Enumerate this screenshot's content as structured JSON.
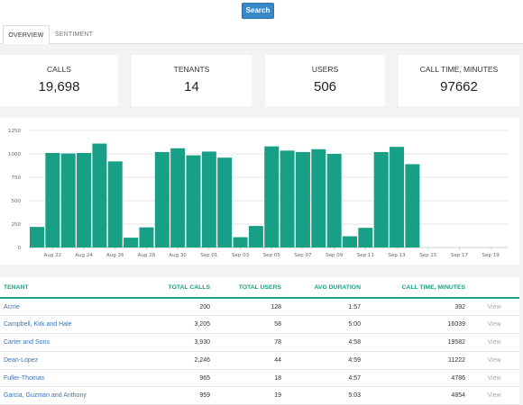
{
  "search_label": "Search",
  "tabs": [
    {
      "label": "OVERVIEW",
      "active": true
    },
    {
      "label": "SENTIMENT",
      "active": false
    }
  ],
  "stats": [
    {
      "label": "CALLS",
      "value": "19,698"
    },
    {
      "label": "TENANTS",
      "value": "14"
    },
    {
      "label": "USERS",
      "value": "506"
    },
    {
      "label": "CALL TIME, MINUTES",
      "value": "97662"
    }
  ],
  "chart_data": {
    "type": "bar",
    "color": "#17a085",
    "ylim": [
      0,
      1250
    ],
    "yticks": [
      0,
      250,
      500,
      750,
      1000,
      1250
    ],
    "grid": true,
    "x": [
      "Aug 21",
      "Aug 22",
      "Aug 23",
      "Aug 24",
      "Aug 25",
      "Aug 26",
      "Aug 27",
      "Aug 28",
      "Aug 29",
      "Aug 30",
      "Aug 31",
      "Sep 01",
      "Sep 02",
      "Sep 03",
      "Sep 04",
      "Sep 05",
      "Sep 06",
      "Sep 07",
      "Sep 08",
      "Sep 09",
      "Sep 10",
      "Sep 11",
      "Sep 12",
      "Sep 13",
      "Sep 14"
    ],
    "values": [
      220,
      1010,
      1005,
      1010,
      1110,
      920,
      105,
      215,
      1020,
      1060,
      985,
      1025,
      960,
      110,
      230,
      1080,
      1035,
      1020,
      1050,
      1000,
      120,
      210,
      1020,
      1075,
      890
    ],
    "xtick_labels": [
      "Aug 22",
      "Aug 24",
      "Aug 26",
      "Aug 28",
      "Aug 30",
      "Sep 01",
      "Sep 03",
      "Sep 05",
      "Sep 07",
      "Sep 09",
      "Sep 11",
      "Sep 13",
      "Sep 15",
      "Sep 17",
      "Sep 19"
    ]
  },
  "table": {
    "headers": [
      "TENANT",
      "TOTAL CALLS",
      "TOTAL USERS",
      "AVG DURATION",
      "CALL TIME, MINUTES",
      ""
    ],
    "rows": [
      {
        "tenant": "Acme",
        "calls": "200",
        "users": "128",
        "avg": "1:57",
        "minutes": "392",
        "action": "View"
      },
      {
        "tenant": "Campbell, Kirk and Hale",
        "calls": "3,205",
        "users": "58",
        "avg": "5:00",
        "minutes": "16039",
        "action": "View"
      },
      {
        "tenant": "Carter and Sons",
        "calls": "3,930",
        "users": "78",
        "avg": "4:58",
        "minutes": "19582",
        "action": "View"
      },
      {
        "tenant": "Dean-Lopez",
        "calls": "2,246",
        "users": "44",
        "avg": "4:59",
        "minutes": "11222",
        "action": "View"
      },
      {
        "tenant": "Fuller-Thomas",
        "calls": "965",
        "users": "18",
        "avg": "4:57",
        "minutes": "4786",
        "action": "View"
      },
      {
        "tenant": "Garcia, Guzman and Anthony",
        "calls": "959",
        "users": "19",
        "avg": "5:03",
        "minutes": "4854",
        "action": "View"
      }
    ]
  }
}
